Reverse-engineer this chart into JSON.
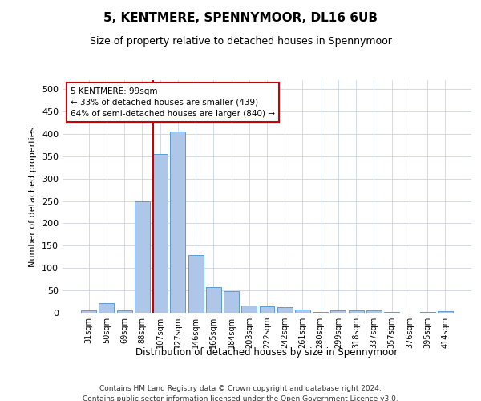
{
  "title": "5, KENTMERE, SPENNYMOOR, DL16 6UB",
  "subtitle": "Size of property relative to detached houses in Spennymoor",
  "xlabel": "Distribution of detached houses by size in Spennymoor",
  "ylabel": "Number of detached properties",
  "categories": [
    "31sqm",
    "50sqm",
    "69sqm",
    "88sqm",
    "107sqm",
    "127sqm",
    "146sqm",
    "165sqm",
    "184sqm",
    "203sqm",
    "222sqm",
    "242sqm",
    "261sqm",
    "280sqm",
    "299sqm",
    "318sqm",
    "337sqm",
    "357sqm",
    "376sqm",
    "395sqm",
    "414sqm"
  ],
  "values": [
    5,
    22,
    5,
    250,
    355,
    405,
    130,
    57,
    49,
    17,
    14,
    13,
    7,
    2,
    5,
    5,
    5,
    1,
    0,
    1,
    3
  ],
  "bar_color": "#aec6e8",
  "bar_edge_color": "#5b9bd5",
  "ylim": [
    0,
    520
  ],
  "yticks": [
    0,
    50,
    100,
    150,
    200,
    250,
    300,
    350,
    400,
    450,
    500
  ],
  "property_label": "5 KENTMERE: 99sqm",
  "annotation_line1": "← 33% of detached houses are smaller (439)",
  "annotation_line2": "64% of semi-detached houses are larger (840) →",
  "vline_color": "#cc0000",
  "annotation_box_color": "#ffffff",
  "annotation_box_edge": "#cc0000",
  "footer_line1": "Contains HM Land Registry data © Crown copyright and database right 2024.",
  "footer_line2": "Contains public sector information licensed under the Open Government Licence v3.0.",
  "background_color": "#ffffff",
  "grid_color": "#c8d4e8",
  "vline_x": 3.6
}
